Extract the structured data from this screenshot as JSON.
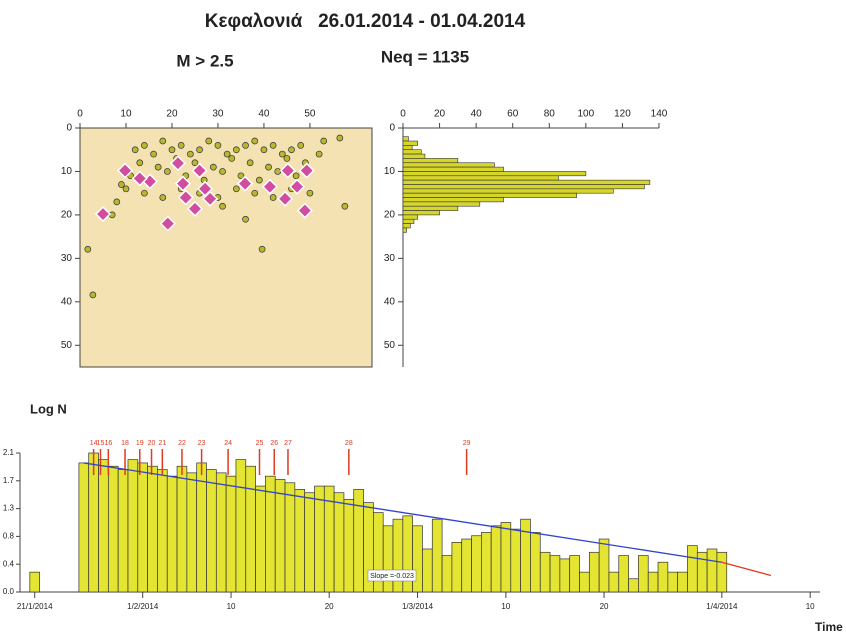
{
  "chart_data": [
    {
      "type": "scatter",
      "title": "Κεφαλονιά   26.01.2014 - 01.04.2014",
      "annotations": [
        "M > 2.5",
        "Neq = 1135"
      ],
      "xlim": [
        0,
        63.5
      ],
      "ylim": [
        0,
        55
      ],
      "xticks": [
        0,
        10,
        20,
        30,
        40,
        50
      ],
      "yticks": [
        0,
        10,
        20,
        30,
        40,
        50
      ],
      "y_inverted": true,
      "background": "#f4e2b2",
      "series": [
        {
          "color": "#b8b830",
          "size": 3,
          "marker": "circle",
          "x": [
            12,
            14,
            16,
            18,
            20,
            22,
            24,
            26,
            28,
            30,
            32,
            34,
            36,
            38,
            40,
            42,
            44,
            46,
            48,
            13,
            17,
            21,
            25,
            29,
            33,
            37,
            41,
            45,
            49,
            11,
            15,
            19,
            23,
            27,
            31,
            35,
            39,
            43,
            47,
            10,
            14,
            18,
            22,
            26,
            30,
            34,
            38,
            42,
            46,
            50,
            8,
            9,
            52,
            53,
            1.7,
            2.8,
            39.6,
            57.6,
            56.5,
            7,
            31,
            36
          ],
          "y": [
            5,
            4,
            6,
            3,
            5,
            4,
            6,
            5,
            3,
            4,
            6,
            5,
            4,
            3,
            5,
            4,
            6,
            5,
            4,
            8,
            9,
            7,
            8,
            9,
            7,
            8,
            9,
            7,
            8,
            11,
            12,
            10,
            11,
            12,
            10,
            11,
            12,
            10,
            11,
            14,
            15,
            16,
            14,
            15,
            16,
            14,
            15,
            16,
            14,
            15,
            17,
            13,
            6,
            3,
            27.9,
            38.4,
            27.9,
            18,
            2.3,
            20,
            18,
            21
          ]
        },
        {
          "color": "#d04da0",
          "size": 7,
          "marker": "diamond",
          "x": [
            9.8,
            15.2,
            21.3,
            22.4,
            26,
            27.2,
            25,
            19.1,
            5,
            35.9,
            41.3,
            44.6,
            47.2,
            49.3,
            48.9,
            45.2,
            28.3,
            13,
            23
          ],
          "y": [
            9.8,
            12.3,
            8.1,
            12.8,
            9.8,
            14,
            18.6,
            22,
            19.8,
            12.8,
            13.5,
            16.3,
            13.5,
            9.8,
            19,
            9.8,
            16.3,
            11.6,
            16
          ]
        }
      ]
    },
    {
      "type": "histogram",
      "orientation": "horizontal",
      "color": "#d6d62a",
      "bins": [
        2,
        3,
        4,
        5,
        6,
        7,
        8,
        9,
        10,
        11,
        12,
        13,
        14,
        15,
        16,
        17,
        18,
        19,
        20,
        21,
        22,
        23,
        24
      ],
      "counts": [
        3,
        8,
        5,
        10,
        12,
        30,
        50,
        55,
        100,
        85,
        135,
        132,
        115,
        95,
        55,
        42,
        30,
        20,
        8,
        6,
        4,
        2
      ],
      "xlim": [
        0,
        140
      ],
      "ylim": [
        0,
        55
      ],
      "xticks": [
        0,
        20,
        40,
        60,
        80,
        100,
        120,
        140
      ],
      "yticks": [
        0,
        10,
        20,
        30,
        40,
        50
      ],
      "y_inverted": true
    },
    {
      "type": "bar",
      "y_label": "Log N",
      "x_label": "Time",
      "color": "#e4e432",
      "x": [
        21,
        26,
        27,
        28,
        29,
        30,
        31,
        32,
        33,
        34,
        35,
        36,
        37,
        38,
        39,
        40,
        41,
        42,
        43,
        44,
        45,
        46,
        47,
        48,
        49,
        50,
        51,
        52,
        53,
        54,
        55,
        56,
        57,
        58,
        59,
        60,
        61,
        62,
        63,
        64,
        65,
        66,
        67,
        68,
        69,
        70,
        71,
        72,
        73,
        74,
        75,
        76,
        77,
        78,
        79,
        80,
        81,
        82,
        83,
        84,
        85,
        86,
        87,
        88,
        89,
        90,
        91
      ],
      "values": [
        0.3,
        1.95,
        2.1,
        2.0,
        1.9,
        1.85,
        2.0,
        1.95,
        1.9,
        1.85,
        1.75,
        1.9,
        1.8,
        1.95,
        1.85,
        1.8,
        1.75,
        2.0,
        1.9,
        1.6,
        1.75,
        1.7,
        1.65,
        1.55,
        1.5,
        1.6,
        1.6,
        1.5,
        1.4,
        1.55,
        1.35,
        1.2,
        1.0,
        1.1,
        1.15,
        1.0,
        0.65,
        1.1,
        0.55,
        0.75,
        0.8,
        0.85,
        0.9,
        1.0,
        1.05,
        0.95,
        1.1,
        0.9,
        0.6,
        0.55,
        0.5,
        0.55,
        0.3,
        0.6,
        0.8,
        0.3,
        0.55,
        0.2,
        0.55,
        0.3,
        0.45,
        0.3,
        0.3,
        0.7,
        0.6,
        0.65,
        0.6
      ],
      "xlim": [
        19.5,
        101
      ],
      "ylim": [
        0,
        2.1
      ],
      "xticks": [
        {
          "value": 21,
          "label": "21/1/2014"
        },
        {
          "value": 32,
          "label": "1/2/2014"
        },
        {
          "value": 41,
          "label": "10"
        },
        {
          "value": 51,
          "label": "20"
        },
        {
          "value": 60,
          "label": "1/3/2014"
        },
        {
          "value": 69,
          "label": "10"
        },
        {
          "value": 79,
          "label": "20"
        },
        {
          "value": 91,
          "label": "1/4/2014"
        },
        {
          "value": 100,
          "label": "10"
        }
      ],
      "yticks": [
        {
          "value": 0,
          "label": "0.0"
        },
        {
          "value": 0.42,
          "label": "0.4"
        },
        {
          "value": 0.84,
          "label": "0.8"
        },
        {
          "value": 1.26,
          "label": "1.3"
        },
        {
          "value": 1.68,
          "label": "1.7"
        },
        2.1
      ],
      "trend": {
        "label": "Slope =-0.023",
        "color": "#3344cc",
        "x": [
          26,
          91
        ],
        "y": [
          1.95,
          0.45
        ]
      },
      "extension": {
        "color": "#e03a20",
        "x": [
          91,
          96
        ],
        "y": [
          0.45,
          0.25
        ]
      },
      "events": {
        "color": "#e03a20",
        "labels": [
          "14",
          "15",
          "16",
          "18",
          "19",
          "20",
          "21",
          "22",
          "23",
          "24",
          "25",
          "26",
          "27",
          "28",
          "29"
        ],
        "x": [
          27,
          27.7,
          28.5,
          30.2,
          31.7,
          32.9,
          34,
          36,
          38,
          40.7,
          43.9,
          45.4,
          46.8,
          53,
          65
        ]
      }
    }
  ]
}
